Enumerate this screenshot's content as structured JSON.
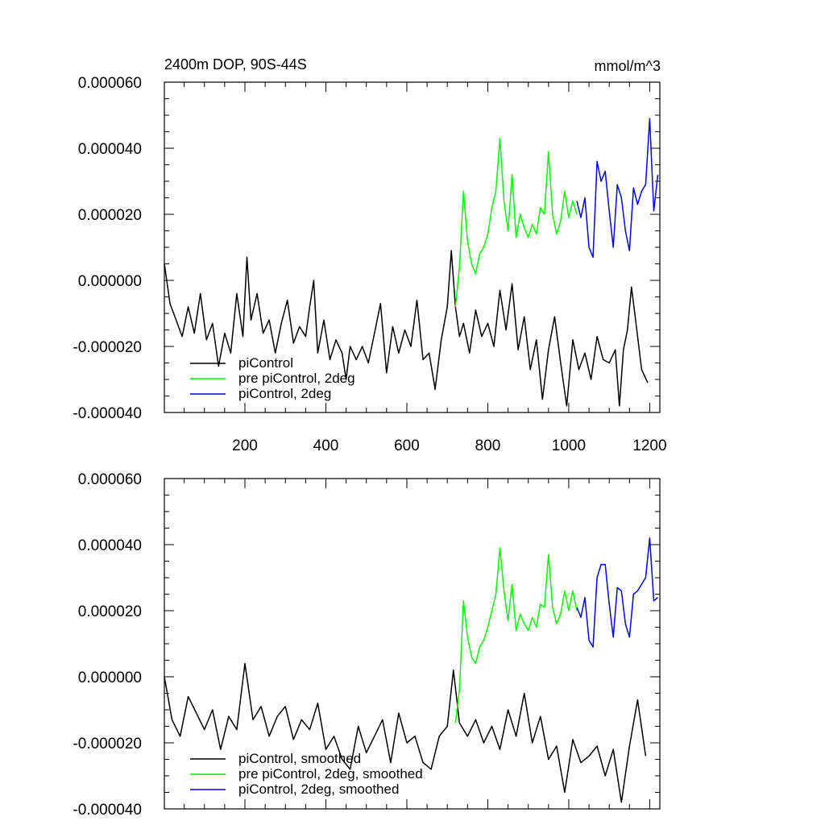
{
  "chart_data": [
    {
      "type": "line",
      "title": "2400m DOP, 90S-44S",
      "units": "mmol/m^3",
      "xlabel": "",
      "ylabel": "",
      "xlim": [
        1,
        1225
      ],
      "ylim": [
        -4e-05,
        6e-05
      ],
      "x_ticks": [
        200,
        400,
        600,
        800,
        1000,
        1200
      ],
      "x_tick_labels": [
        "200",
        "400",
        "600",
        "800",
        "1000",
        "1200"
      ],
      "y_ticks": [
        -4e-05,
        -2e-05,
        0.0,
        2e-05,
        4e-05,
        6e-05
      ],
      "y_tick_labels": [
        "-0.000040",
        "-0.000020",
        "0.000000",
        "0.000020",
        "0.000040",
        "0.000060"
      ],
      "grid": false,
      "legend_position": "bottom-left",
      "series": [
        {
          "name": "piControl",
          "color": "#000000",
          "x": [
            1,
            15,
            30,
            45,
            60,
            75,
            90,
            105,
            120,
            135,
            150,
            165,
            180,
            195,
            205,
            215,
            230,
            245,
            260,
            275,
            290,
            305,
            320,
            335,
            350,
            360,
            370,
            380,
            395,
            410,
            425,
            440,
            450,
            460,
            475,
            490,
            505,
            520,
            535,
            550,
            565,
            580,
            595,
            610,
            625,
            640,
            655,
            670,
            685,
            700,
            710,
            720,
            730,
            740,
            755,
            770,
            785,
            800,
            815,
            830,
            845,
            860,
            875,
            890,
            905,
            920,
            935,
            950,
            965,
            980,
            995,
            1010,
            1025,
            1040,
            1055,
            1070,
            1085,
            1100,
            1115,
            1125,
            1135,
            1145,
            1155,
            1165,
            1180,
            1195
          ],
          "y": [
            5e-06,
            -7e-06,
            -1.2e-05,
            -1.7e-05,
            -8e-06,
            -1.6e-05,
            -4e-06,
            -1.8e-05,
            -1.3e-05,
            -2.6e-05,
            -1.6e-05,
            -2.2e-05,
            -4e-06,
            -1.7e-05,
            7e-06,
            -1.2e-05,
            -4e-06,
            -1.6e-05,
            -1.2e-05,
            -2.2e-05,
            -1.3e-05,
            -6e-06,
            -1.9e-05,
            -1.4e-05,
            -1.7e-05,
            -8e-06,
            0.0,
            -2.2e-05,
            -1.2e-05,
            -2.4e-05,
            -1.8e-05,
            -2.2e-05,
            -3e-05,
            -2e-05,
            -2.4e-05,
            -2e-05,
            -2.5e-05,
            -1.6e-05,
            -7e-06,
            -2.8e-05,
            -1.4e-05,
            -2.2e-05,
            -1.5e-05,
            -2e-05,
            -6e-06,
            -2.4e-05,
            -2.2e-05,
            -3.3e-05,
            -1.8e-05,
            -8e-06,
            9e-06,
            -8e-06,
            -1.7e-05,
            -1.3e-05,
            -2.2e-05,
            -9e-06,
            -1.7e-05,
            -1.3e-05,
            -2e-05,
            -3e-06,
            -1.5e-05,
            -1e-06,
            -2.1e-05,
            -1.1e-05,
            -2.7e-05,
            -1.8e-05,
            -3.6e-05,
            -2.1e-05,
            -1.1e-05,
            -2.5e-05,
            -3.8e-05,
            -1.8e-05,
            -2.7e-05,
            -2.2e-05,
            -3e-05,
            -1.7e-05,
            -2.4e-05,
            -2.5e-05,
            -2.1e-05,
            -3.8e-05,
            -2.1e-05,
            -1.5e-05,
            -2e-06,
            -1.2e-05,
            -2.7e-05,
            -3.1e-05
          ]
        },
        {
          "name": "pre piControl, 2deg",
          "color": "#00ff00",
          "x": [
            720,
            730,
            740,
            750,
            760,
            770,
            780,
            790,
            800,
            810,
            820,
            830,
            840,
            850,
            860,
            870,
            880,
            890,
            900,
            910,
            920,
            930,
            940,
            950,
            960,
            970,
            980,
            990,
            1000,
            1010,
            1020
          ],
          "y": [
            -8e-06,
            4e-06,
            2.7e-05,
            1.2e-05,
            5e-06,
            2e-06,
            8e-06,
            1e-05,
            1.4e-05,
            2.2e-05,
            2.7e-05,
            4.3e-05,
            2.4e-05,
            1.5e-05,
            3.2e-05,
            1.3e-05,
            2e-05,
            1.6e-05,
            1.3e-05,
            1.7e-05,
            1.4e-05,
            2.2e-05,
            2e-05,
            3.9e-05,
            2e-05,
            1.4e-05,
            1.8e-05,
            2.7e-05,
            1.9e-05,
            2.4e-05,
            2e-05
          ]
        },
        {
          "name": "piControl, 2deg",
          "color": "#0000ff",
          "x": [
            1020,
            1030,
            1040,
            1050,
            1060,
            1070,
            1080,
            1090,
            1100,
            1110,
            1120,
            1130,
            1140,
            1150,
            1160,
            1170,
            1180,
            1190,
            1200,
            1210,
            1220
          ],
          "y": [
            2.4e-05,
            1.9e-05,
            2.5e-05,
            1e-05,
            7e-06,
            3.6e-05,
            3e-05,
            3.3e-05,
            2.1e-05,
            1e-05,
            2.9e-05,
            2.5e-05,
            1.5e-05,
            9e-06,
            2.8e-05,
            2.3e-05,
            2.7e-05,
            2.9e-05,
            4.9e-05,
            2.1e-05,
            3.2e-05
          ]
        }
      ]
    },
    {
      "type": "line",
      "title": "",
      "units": "",
      "xlabel": "",
      "ylabel": "",
      "xlim": [
        1,
        1225
      ],
      "ylim": [
        -4e-05,
        6e-05
      ],
      "x_ticks": [
        200,
        400,
        600,
        800,
        1000,
        1200
      ],
      "x_tick_labels": [],
      "y_ticks": [
        -4e-05,
        -2e-05,
        0.0,
        2e-05,
        4e-05,
        6e-05
      ],
      "y_tick_labels": [
        "-0.000040",
        "-0.000020",
        "0.000000",
        "0.000020",
        "0.000040",
        "0.000060"
      ],
      "grid": false,
      "legend_position": "bottom-left",
      "series": [
        {
          "name": "piControl, smoothed",
          "color": "#000000",
          "x": [
            1,
            20,
            40,
            60,
            80,
            100,
            120,
            140,
            160,
            180,
            200,
            220,
            240,
            260,
            280,
            300,
            320,
            340,
            360,
            380,
            400,
            420,
            440,
            460,
            480,
            500,
            520,
            540,
            560,
            580,
            600,
            620,
            640,
            660,
            680,
            700,
            715,
            730,
            750,
            770,
            790,
            810,
            830,
            850,
            870,
            890,
            910,
            930,
            950,
            970,
            990,
            1010,
            1030,
            1050,
            1070,
            1090,
            1110,
            1130,
            1150,
            1170,
            1190
          ],
          "y": [
            0.0,
            -1.3e-05,
            -1.8e-05,
            -6e-06,
            -1.1e-05,
            -1.6e-05,
            -1e-05,
            -2.2e-05,
            -1.2e-05,
            -1.6e-05,
            4e-06,
            -1.3e-05,
            -9e-06,
            -1.8e-05,
            -1.2e-05,
            -9e-06,
            -1.9e-05,
            -1.3e-05,
            -1.6e-05,
            -8e-06,
            -2.2e-05,
            -1.8e-05,
            -2.5e-05,
            -2.8e-05,
            -1.5e-05,
            -2.3e-05,
            -1.8e-05,
            -1.3e-05,
            -2.6e-05,
            -1.1e-05,
            -2e-05,
            -1.8e-05,
            -2.6e-05,
            -2.8e-05,
            -1.8e-05,
            -1.5e-05,
            2e-06,
            -1.4e-05,
            -1.8e-05,
            -1.3e-05,
            -2e-05,
            -1.5e-05,
            -2.2e-05,
            -1e-05,
            -1.8e-05,
            -5e-06,
            -2e-05,
            -1.2e-05,
            -2.5e-05,
            -2.1e-05,
            -3.5e-05,
            -1.9e-05,
            -2.6e-05,
            -2.4e-05,
            -2.1e-05,
            -3e-05,
            -2.2e-05,
            -3.8e-05,
            -2.1e-05,
            -7e-06,
            -2.4e-05
          ]
        },
        {
          "name": "pre piControl, 2deg, smoothed",
          "color": "#00ff00",
          "x": [
            720,
            730,
            740,
            750,
            760,
            770,
            780,
            790,
            800,
            810,
            820,
            830,
            840,
            850,
            860,
            870,
            880,
            890,
            900,
            910,
            920,
            930,
            940,
            950,
            960,
            970,
            980,
            990,
            1000,
            1010,
            1020
          ],
          "y": [
            -1.4e-05,
            -4e-06,
            2.3e-05,
            1.2e-05,
            6e-06,
            4e-06,
            9e-06,
            1.1e-05,
            1.5e-05,
            2e-05,
            2.5e-05,
            3.9e-05,
            2.6e-05,
            1.7e-05,
            2.8e-05,
            1.4e-05,
            1.9e-05,
            1.6e-05,
            1.4e-05,
            1.8e-05,
            1.5e-05,
            2.2e-05,
            2.1e-05,
            3.7e-05,
            2.1e-05,
            1.6e-05,
            1.9e-05,
            2.6e-05,
            2e-05,
            2.6e-05,
            2e-05
          ]
        },
        {
          "name": "piControl, 2deg, smoothed",
          "color": "#0000ff",
          "x": [
            1020,
            1030,
            1040,
            1050,
            1060,
            1070,
            1080,
            1090,
            1100,
            1110,
            1120,
            1130,
            1140,
            1150,
            1160,
            1170,
            1180,
            1190,
            1200,
            1210,
            1220
          ],
          "y": [
            2.1e-05,
            1.8e-05,
            2.4e-05,
            1.1e-05,
            9e-06,
            3e-05,
            3.4e-05,
            3.4e-05,
            2.2e-05,
            1.2e-05,
            2.7e-05,
            2.6e-05,
            1.6e-05,
            1.2e-05,
            2.5e-05,
            2.6e-05,
            2.8e-05,
            3e-05,
            4.2e-05,
            2.3e-05,
            2.4e-05
          ]
        }
      ]
    }
  ]
}
